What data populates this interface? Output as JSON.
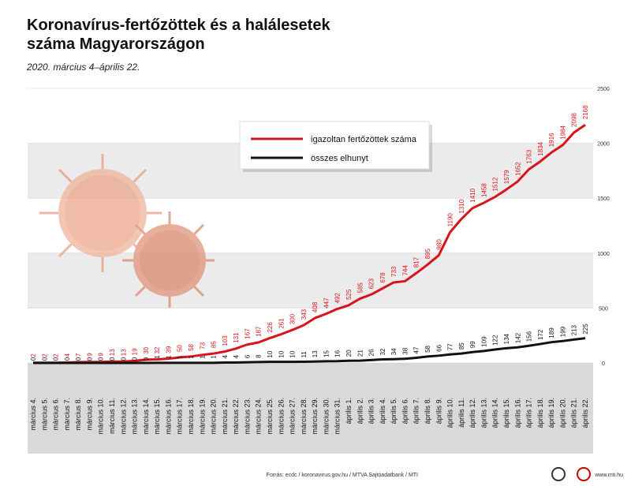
{
  "chart_data": {
    "type": "line",
    "title": "Koronavírus-fertőzöttek és a halálesetek száma Magyarországon",
    "subtitle": "2020. március 4–április 22.",
    "categories": [
      "március 4.",
      "március 5.",
      "március 6.",
      "március 7.",
      "március 8.",
      "március 9.",
      "március 10.",
      "március 11.",
      "március 12.",
      "március 13.",
      "március 14.",
      "március 15.",
      "március 16.",
      "március 17.",
      "március 18.",
      "március 19.",
      "március 20.",
      "március 21.",
      "március 22.",
      "március 23.",
      "március 24.",
      "március 25.",
      "március 26.",
      "március 27.",
      "március 28.",
      "március 29.",
      "március 30.",
      "március 31.",
      "április 1.",
      "április 2.",
      "április 3.",
      "április 4.",
      "április 5.",
      "április 6.",
      "április 7.",
      "április 8.",
      "április 9.",
      "április 10.",
      "április 11.",
      "április 12.",
      "április 13.",
      "április 14.",
      "április 15.",
      "április 16.",
      "április 17.",
      "április 18.",
      "április 19.",
      "április 20.",
      "április 21.",
      "április 22."
    ],
    "series": [
      {
        "name": "igazoltan fertőzöttek száma",
        "color": "#d7141a",
        "values": [
          2,
          2,
          2,
          4,
          7,
          9,
          9,
          13,
          13,
          19,
          30,
          32,
          39,
          50,
          58,
          73,
          85,
          103,
          131,
          167,
          187,
          226,
          261,
          300,
          343,
          408,
          447,
          492,
          525,
          585,
          623,
          678,
          733,
          744,
          817,
          895,
          980,
          1190,
          1310,
          1410,
          1458,
          1512,
          1579,
          1652,
          1763,
          1834,
          1916,
          1984,
          2098,
          2168
        ]
      },
      {
        "name": "összes elhunyt",
        "color": "#111111",
        "values": [
          0,
          0,
          0,
          0,
          0,
          0,
          0,
          0,
          0,
          0,
          0,
          1,
          1,
          1,
          1,
          1,
          1,
          4,
          4,
          6,
          8,
          10,
          10,
          10,
          11,
          13,
          15,
          16,
          20,
          21,
          26,
          32,
          34,
          38,
          47,
          58,
          66,
          77,
          85,
          99,
          109,
          122,
          134,
          142,
          156,
          172,
          189,
          199,
          213,
          225
        ]
      }
    ],
    "ylim": [
      0,
      2500
    ],
    "yticks": [
      0,
      500,
      1000,
      1500,
      2000,
      2500
    ],
    "source": "Forrás: ecdc / koronavirus.gov.hu / MTVA Sajtóadatbank / MTI",
    "website": "www.mti.hu"
  }
}
